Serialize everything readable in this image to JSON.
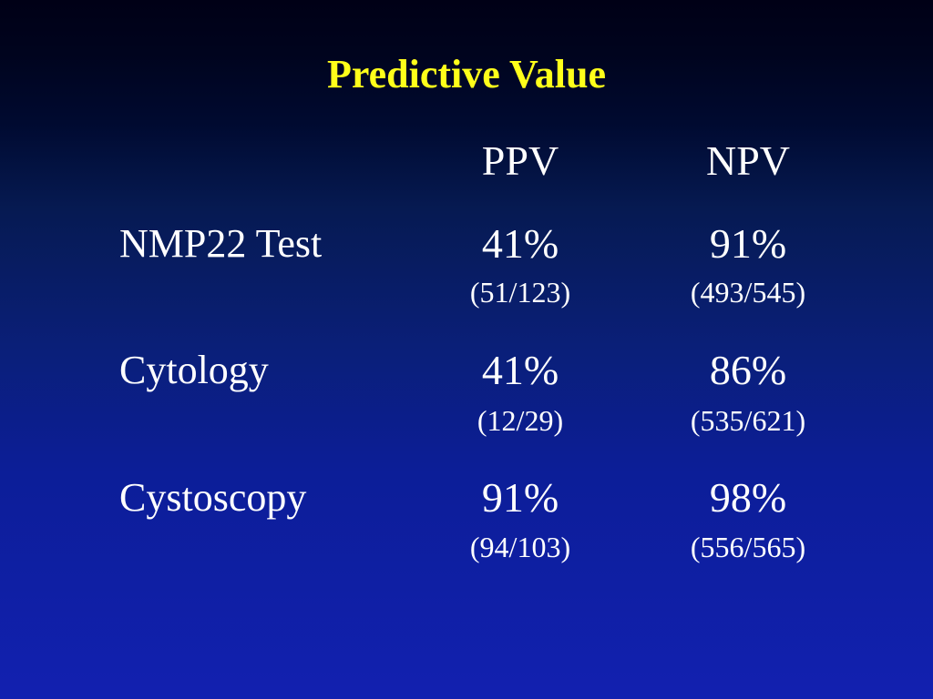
{
  "title": "Predictive Value",
  "columns": [
    "PPV",
    "NPV"
  ],
  "rows": [
    {
      "label": "NMP22 Test",
      "ppv": {
        "percent": "41%",
        "fraction": "(51/123)"
      },
      "npv": {
        "percent": "91%",
        "fraction": "(493/545)"
      }
    },
    {
      "label": "Cytology",
      "ppv": {
        "percent": "41%",
        "fraction": "(12/29)"
      },
      "npv": {
        "percent": "86%",
        "fraction": "(535/621)"
      }
    },
    {
      "label": "Cystoscopy",
      "ppv": {
        "percent": "91%",
        "fraction": "(94/103)"
      },
      "npv": {
        "percent": "98%",
        "fraction": "(556/565)"
      }
    }
  ],
  "colors": {
    "title": "#ffff1a",
    "text": "#ffffff",
    "background_top": "#000016",
    "background_bottom": "#1220b0"
  }
}
